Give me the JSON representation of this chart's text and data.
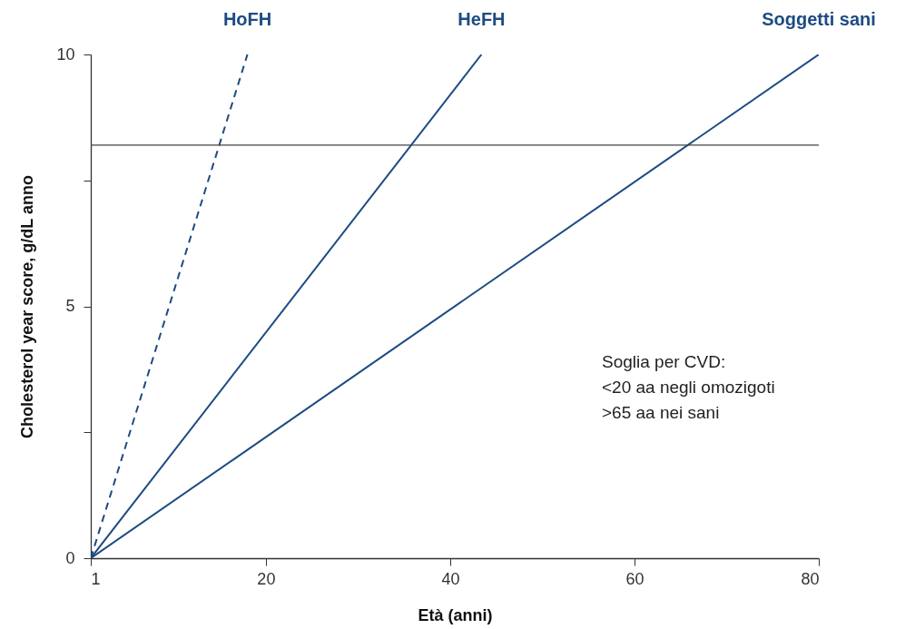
{
  "chart_data": {
    "type": "line",
    "xlabel": "Età (anni)",
    "ylabel": "Cholesterol year score, g/dL anno",
    "xlim": [
      1,
      80
    ],
    "xticks": [
      1,
      20,
      40,
      60,
      80
    ],
    "ylim": [
      0,
      10
    ],
    "yticks": [
      0,
      {
        "value": 2.5,
        "label": null
      },
      5,
      {
        "value": 7.5,
        "label": null
      },
      10
    ],
    "grid": false,
    "marker": "none",
    "series": [
      {
        "name": "HoFH",
        "color": "#1d4b82",
        "line_style": "dashed",
        "x": [
          1,
          18
        ],
        "values": [
          0,
          10
        ]
      },
      {
        "name": "HeFH",
        "color": "#1d4b82",
        "line_style": "solid",
        "x": [
          1,
          43.4
        ],
        "values": [
          0,
          10
        ]
      },
      {
        "name": "Soggetti sani",
        "color": "#1d4b82",
        "line_style": "solid",
        "x": [
          1,
          80
        ],
        "values": [
          0,
          10
        ]
      }
    ],
    "ref_lines": [
      {
        "axis": "y",
        "value": 8.2,
        "color": "#444444",
        "line_style": "solid"
      }
    ],
    "annotations": [
      "Soglia per CVD:",
      "<20 aa negli omozigoti",
      ">65 aa nei sani"
    ]
  }
}
